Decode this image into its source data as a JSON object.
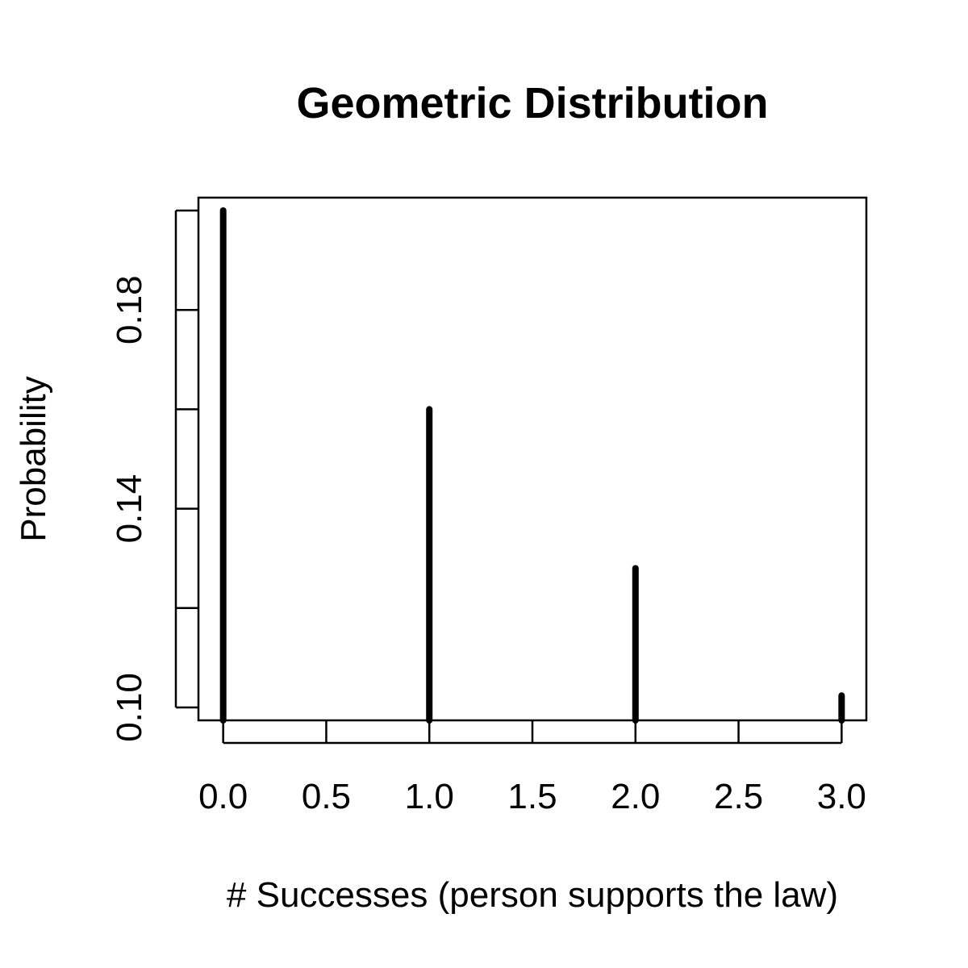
{
  "chart_data": {
    "type": "bar",
    "style": "vertical-lines (R type='h')",
    "title": "Geometric Distribution",
    "xlabel": "# Successes (person supports the law)",
    "ylabel": "Probability",
    "x": [
      0,
      1,
      2,
      3
    ],
    "values": [
      0.2,
      0.16,
      0.128,
      0.1024
    ],
    "xlim": [
      -0.12,
      3.12
    ],
    "ylim": [
      0.0974,
      0.2026
    ],
    "x_ticks": [
      0,
      0.5,
      1,
      1.5,
      2,
      2.5,
      3
    ],
    "x_tick_labels": [
      "0.0",
      "0.5",
      "1.0",
      "1.5",
      "2.0",
      "2.5",
      "3.0"
    ],
    "y_ticks": [
      0.1,
      0.12,
      0.14,
      0.16,
      0.18,
      0.2
    ],
    "y_tick_labels": [
      "0.10",
      "",
      "0.14",
      "",
      "0.18",
      ""
    ],
    "grid": false,
    "legend": "none",
    "line_color": "#000000"
  }
}
